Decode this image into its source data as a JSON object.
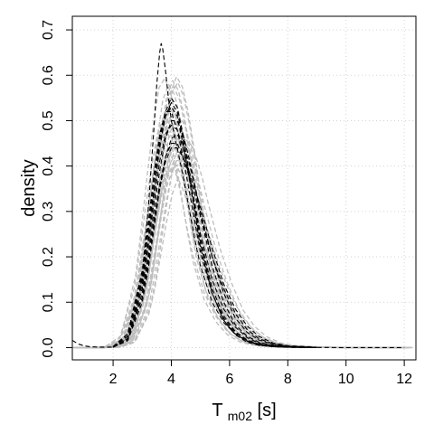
{
  "chart_data": {
    "type": "line",
    "title": "",
    "xlabel": {
      "main": "T",
      "subscript": "m02",
      "suffix": " [s]"
    },
    "ylabel": "density",
    "xlim": [
      0.6,
      12.4
    ],
    "ylim": [
      -0.027,
      0.73
    ],
    "xticks": [
      2,
      4,
      6,
      8,
      10,
      12
    ],
    "yticks": [
      0.0,
      0.1,
      0.2,
      0.3,
      0.4,
      0.5,
      0.6,
      0.7
    ],
    "xtick_labels": [
      "2",
      "4",
      "6",
      "8",
      "10",
      "12"
    ],
    "ytick_labels": [
      "0.0",
      "0.1",
      "0.2",
      "0.3",
      "0.4",
      "0.5",
      "0.6",
      "0.7"
    ],
    "grid": true,
    "legend": "none",
    "colors": {
      "ensemble": "#bdbdbd",
      "highlight": "#000000",
      "grid": "#d3d3d3",
      "frame": "#000000"
    },
    "ensemble_series": {
      "style": "dashed",
      "color": "#bdbdbd",
      "count": 30,
      "x": [
        0.6,
        1.0,
        1.5,
        2.0,
        2.5,
        3.0,
        3.2,
        3.4,
        3.6,
        3.8,
        4.0,
        4.2,
        4.4,
        4.6,
        4.8,
        5.0,
        5.4,
        5.8,
        6.2,
        6.6,
        7.0,
        7.5,
        8.0,
        9.0,
        10.0,
        11.0,
        12.0
      ],
      "templates": [
        [
          0.0,
          0.0,
          0.0,
          0.002,
          0.02,
          0.13,
          0.22,
          0.32,
          0.42,
          0.5,
          0.53,
          0.51,
          0.46,
          0.39,
          0.31,
          0.24,
          0.14,
          0.08,
          0.04,
          0.02,
          0.01,
          0.004,
          0.002,
          0.0005,
          0.0,
          0.0,
          0.0
        ],
        [
          0.0,
          0.0,
          0.0,
          0.001,
          0.015,
          0.1,
          0.18,
          0.27,
          0.36,
          0.43,
          0.47,
          0.47,
          0.44,
          0.39,
          0.33,
          0.27,
          0.17,
          0.1,
          0.055,
          0.03,
          0.015,
          0.006,
          0.003,
          0.001,
          0.0003,
          0.0,
          0.0
        ],
        [
          0.0,
          0.0,
          0.0,
          0.003,
          0.025,
          0.15,
          0.25,
          0.36,
          0.46,
          0.54,
          0.56,
          0.53,
          0.47,
          0.39,
          0.3,
          0.22,
          0.12,
          0.065,
          0.032,
          0.015,
          0.007,
          0.003,
          0.001,
          0.0003,
          0.0,
          0.0,
          0.0
        ],
        [
          0.0,
          0.0,
          0.0,
          0.001,
          0.012,
          0.08,
          0.14,
          0.22,
          0.3,
          0.37,
          0.41,
          0.42,
          0.41,
          0.38,
          0.34,
          0.29,
          0.2,
          0.13,
          0.075,
          0.042,
          0.022,
          0.009,
          0.004,
          0.001,
          0.0004,
          0.0001,
          0.0
        ]
      ]
    },
    "highlighted_series": {
      "style": "dashed",
      "color": "#000000",
      "count": 10,
      "curves": [
        {
          "x": [
            0.6,
            0.8,
            1.0,
            1.2,
            1.5,
            2.0,
            2.5,
            2.8,
            3.0,
            3.2,
            3.4,
            3.5,
            3.6,
            3.65,
            3.7,
            3.8,
            3.9,
            4.0,
            4.2,
            4.4,
            4.6,
            4.8,
            5.0,
            5.4,
            5.8,
            6.2,
            6.6,
            7.0,
            7.5,
            8.0,
            9.0,
            10.0,
            11.0,
            12.0
          ],
          "y": [
            0.016,
            0.008,
            0.004,
            0.002,
            0.001,
            0.001,
            0.02,
            0.08,
            0.16,
            0.3,
            0.48,
            0.58,
            0.65,
            0.67,
            0.66,
            0.61,
            0.55,
            0.5,
            0.44,
            0.38,
            0.31,
            0.24,
            0.18,
            0.1,
            0.055,
            0.03,
            0.015,
            0.007,
            0.003,
            0.001,
            0.0003,
            0.0,
            0.0,
            0.0
          ]
        },
        {
          "x": [
            2.0,
            2.5,
            3.0,
            3.2,
            3.4,
            3.6,
            3.8,
            4.0,
            4.2,
            4.4,
            4.6,
            4.8,
            5.0,
            5.4,
            5.8,
            6.2,
            6.6,
            7.0,
            7.5,
            8.0,
            9.0
          ],
          "y": [
            0.002,
            0.03,
            0.17,
            0.27,
            0.38,
            0.47,
            0.52,
            0.52,
            0.48,
            0.42,
            0.35,
            0.28,
            0.21,
            0.12,
            0.065,
            0.032,
            0.015,
            0.007,
            0.003,
            0.001,
            0.0
          ]
        },
        {
          "x": [
            2.0,
            2.5,
            3.0,
            3.2,
            3.4,
            3.6,
            3.8,
            4.0,
            4.2,
            4.4,
            4.6,
            4.8,
            5.0,
            5.4,
            5.8,
            6.2,
            6.6,
            7.0,
            7.5,
            8.0,
            9.0
          ],
          "y": [
            0.001,
            0.02,
            0.12,
            0.2,
            0.3,
            0.39,
            0.46,
            0.5,
            0.5,
            0.47,
            0.42,
            0.36,
            0.29,
            0.18,
            0.1,
            0.05,
            0.025,
            0.012,
            0.005,
            0.002,
            0.0
          ]
        },
        {
          "x": [
            2.0,
            2.5,
            3.0,
            3.2,
            3.4,
            3.6,
            3.8,
            4.0,
            4.2,
            4.4,
            4.6,
            4.8,
            5.0,
            5.4,
            5.8,
            6.2,
            6.6,
            7.0,
            7.5,
            8.0,
            9.0
          ],
          "y": [
            0.002,
            0.025,
            0.14,
            0.23,
            0.34,
            0.44,
            0.51,
            0.54,
            0.52,
            0.46,
            0.39,
            0.31,
            0.24,
            0.13,
            0.07,
            0.035,
            0.017,
            0.008,
            0.003,
            0.001,
            0.0
          ]
        },
        {
          "x": [
            2.0,
            2.5,
            3.0,
            3.2,
            3.4,
            3.6,
            3.8,
            4.0,
            4.2,
            4.4,
            4.6,
            4.8,
            5.0,
            5.4,
            5.8,
            6.2,
            6.6,
            7.0,
            7.5,
            8.0,
            9.0
          ],
          "y": [
            0.001,
            0.015,
            0.1,
            0.17,
            0.26,
            0.35,
            0.42,
            0.46,
            0.47,
            0.45,
            0.41,
            0.36,
            0.3,
            0.2,
            0.12,
            0.065,
            0.034,
            0.017,
            0.007,
            0.003,
            0.0005
          ]
        },
        {
          "x": [
            2.0,
            2.5,
            3.0,
            3.2,
            3.4,
            3.6,
            3.8,
            4.0,
            4.2,
            4.4,
            4.6,
            4.8,
            5.0,
            5.4,
            5.8,
            6.2,
            6.6,
            7.0,
            7.5,
            8.0,
            9.0
          ],
          "y": [
            0.002,
            0.03,
            0.16,
            0.26,
            0.37,
            0.46,
            0.52,
            0.55,
            0.53,
            0.47,
            0.39,
            0.31,
            0.23,
            0.12,
            0.06,
            0.03,
            0.014,
            0.006,
            0.002,
            0.001,
            0.0
          ]
        },
        {
          "x": [
            2.0,
            2.5,
            3.0,
            3.2,
            3.4,
            3.6,
            3.8,
            4.0,
            4.2,
            4.4,
            4.6,
            4.8,
            5.0,
            5.4,
            5.8,
            6.2,
            6.6,
            7.0,
            7.5,
            8.0,
            9.0
          ],
          "y": [
            0.001,
            0.02,
            0.11,
            0.19,
            0.28,
            0.36,
            0.42,
            0.45,
            0.45,
            0.42,
            0.38,
            0.34,
            0.29,
            0.2,
            0.13,
            0.075,
            0.04,
            0.02,
            0.008,
            0.003,
            0.0005
          ]
        },
        {
          "x": [
            2.0,
            2.5,
            3.0,
            3.2,
            3.4,
            3.6,
            3.8,
            4.0,
            4.2,
            4.4,
            4.6,
            4.8,
            5.0,
            5.4,
            5.8,
            6.2,
            6.6,
            7.0,
            7.5,
            8.0,
            9.0
          ],
          "y": [
            0.002,
            0.025,
            0.13,
            0.22,
            0.32,
            0.41,
            0.47,
            0.49,
            0.48,
            0.44,
            0.38,
            0.32,
            0.25,
            0.15,
            0.085,
            0.045,
            0.022,
            0.01,
            0.004,
            0.0015,
            0.0
          ]
        },
        {
          "x": [
            2.0,
            2.5,
            3.0,
            3.2,
            3.4,
            3.6,
            3.8,
            4.0,
            4.2,
            4.4,
            4.6,
            4.8,
            5.0,
            5.4,
            5.8,
            6.2,
            6.6,
            7.0,
            7.5,
            8.0,
            9.0
          ],
          "y": [
            0.001,
            0.018,
            0.11,
            0.18,
            0.27,
            0.35,
            0.41,
            0.44,
            0.44,
            0.42,
            0.39,
            0.35,
            0.31,
            0.22,
            0.14,
            0.085,
            0.048,
            0.025,
            0.01,
            0.004,
            0.0008
          ]
        },
        {
          "x": [
            2.0,
            2.5,
            3.0,
            3.2,
            3.4,
            3.6,
            3.8,
            4.0,
            4.2,
            4.4,
            4.6,
            4.8,
            5.0,
            5.4,
            5.8,
            6.2,
            6.6,
            7.0,
            7.5,
            8.0,
            9.0
          ],
          "y": [
            0.002,
            0.03,
            0.15,
            0.25,
            0.35,
            0.45,
            0.51,
            0.53,
            0.51,
            0.45,
            0.38,
            0.3,
            0.22,
            0.12,
            0.06,
            0.028,
            0.012,
            0.005,
            0.002,
            0.0007,
            0.0
          ]
        }
      ]
    }
  }
}
